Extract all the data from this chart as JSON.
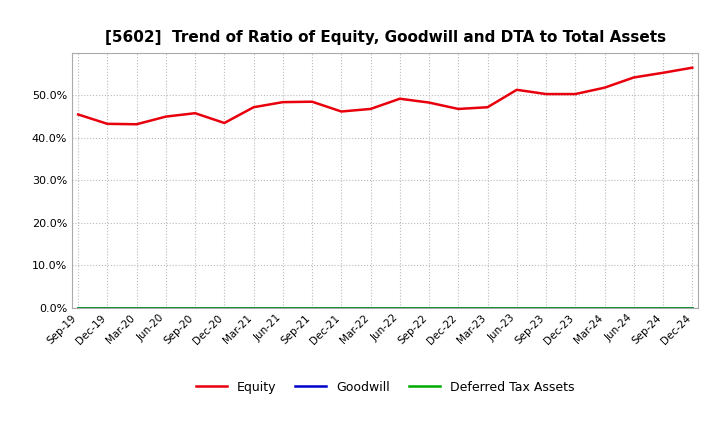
{
  "title": "[5602]  Trend of Ratio of Equity, Goodwill and DTA to Total Assets",
  "x_labels": [
    "Sep-19",
    "Dec-19",
    "Mar-20",
    "Jun-20",
    "Sep-20",
    "Dec-20",
    "Mar-21",
    "Jun-21",
    "Sep-21",
    "Dec-21",
    "Mar-22",
    "Jun-22",
    "Sep-22",
    "Dec-22",
    "Mar-23",
    "Jun-23",
    "Sep-23",
    "Dec-23",
    "Mar-24",
    "Jun-24",
    "Sep-24",
    "Dec-24"
  ],
  "equity": [
    0.455,
    0.433,
    0.432,
    0.45,
    0.458,
    0.435,
    0.472,
    0.484,
    0.485,
    0.462,
    0.468,
    0.492,
    0.483,
    0.468,
    0.472,
    0.513,
    0.503,
    0.503,
    0.518,
    0.542,
    0.553,
    0.565
  ],
  "goodwill": [
    0.0,
    0.0,
    0.0,
    0.0,
    0.0,
    0.0,
    0.0,
    0.0,
    0.0,
    0.0,
    0.0,
    0.0,
    0.0,
    0.0,
    0.0,
    0.0,
    0.0,
    0.0,
    0.0,
    0.0,
    0.0,
    0.0
  ],
  "dta": [
    0.0,
    0.0,
    0.0,
    0.0,
    0.0,
    0.0,
    0.0,
    0.0,
    0.0,
    0.0,
    0.0,
    0.0,
    0.0,
    0.0,
    0.0,
    0.0,
    0.0,
    0.0,
    0.0,
    0.0,
    0.0,
    0.0
  ],
  "equity_color": "#e8000d",
  "goodwill_color": "#0000cc",
  "dta_color": "#00aa00",
  "ylim": [
    0.0,
    0.6
  ],
  "yticks": [
    0.0,
    0.1,
    0.2,
    0.3,
    0.4,
    0.5
  ],
  "background_color": "#ffffff",
  "plot_bg_color": "#ffffff",
  "grid_color": "#bbbbbb",
  "title_fontsize": 11,
  "legend_labels": [
    "Equity",
    "Goodwill",
    "Deferred Tax Assets"
  ]
}
